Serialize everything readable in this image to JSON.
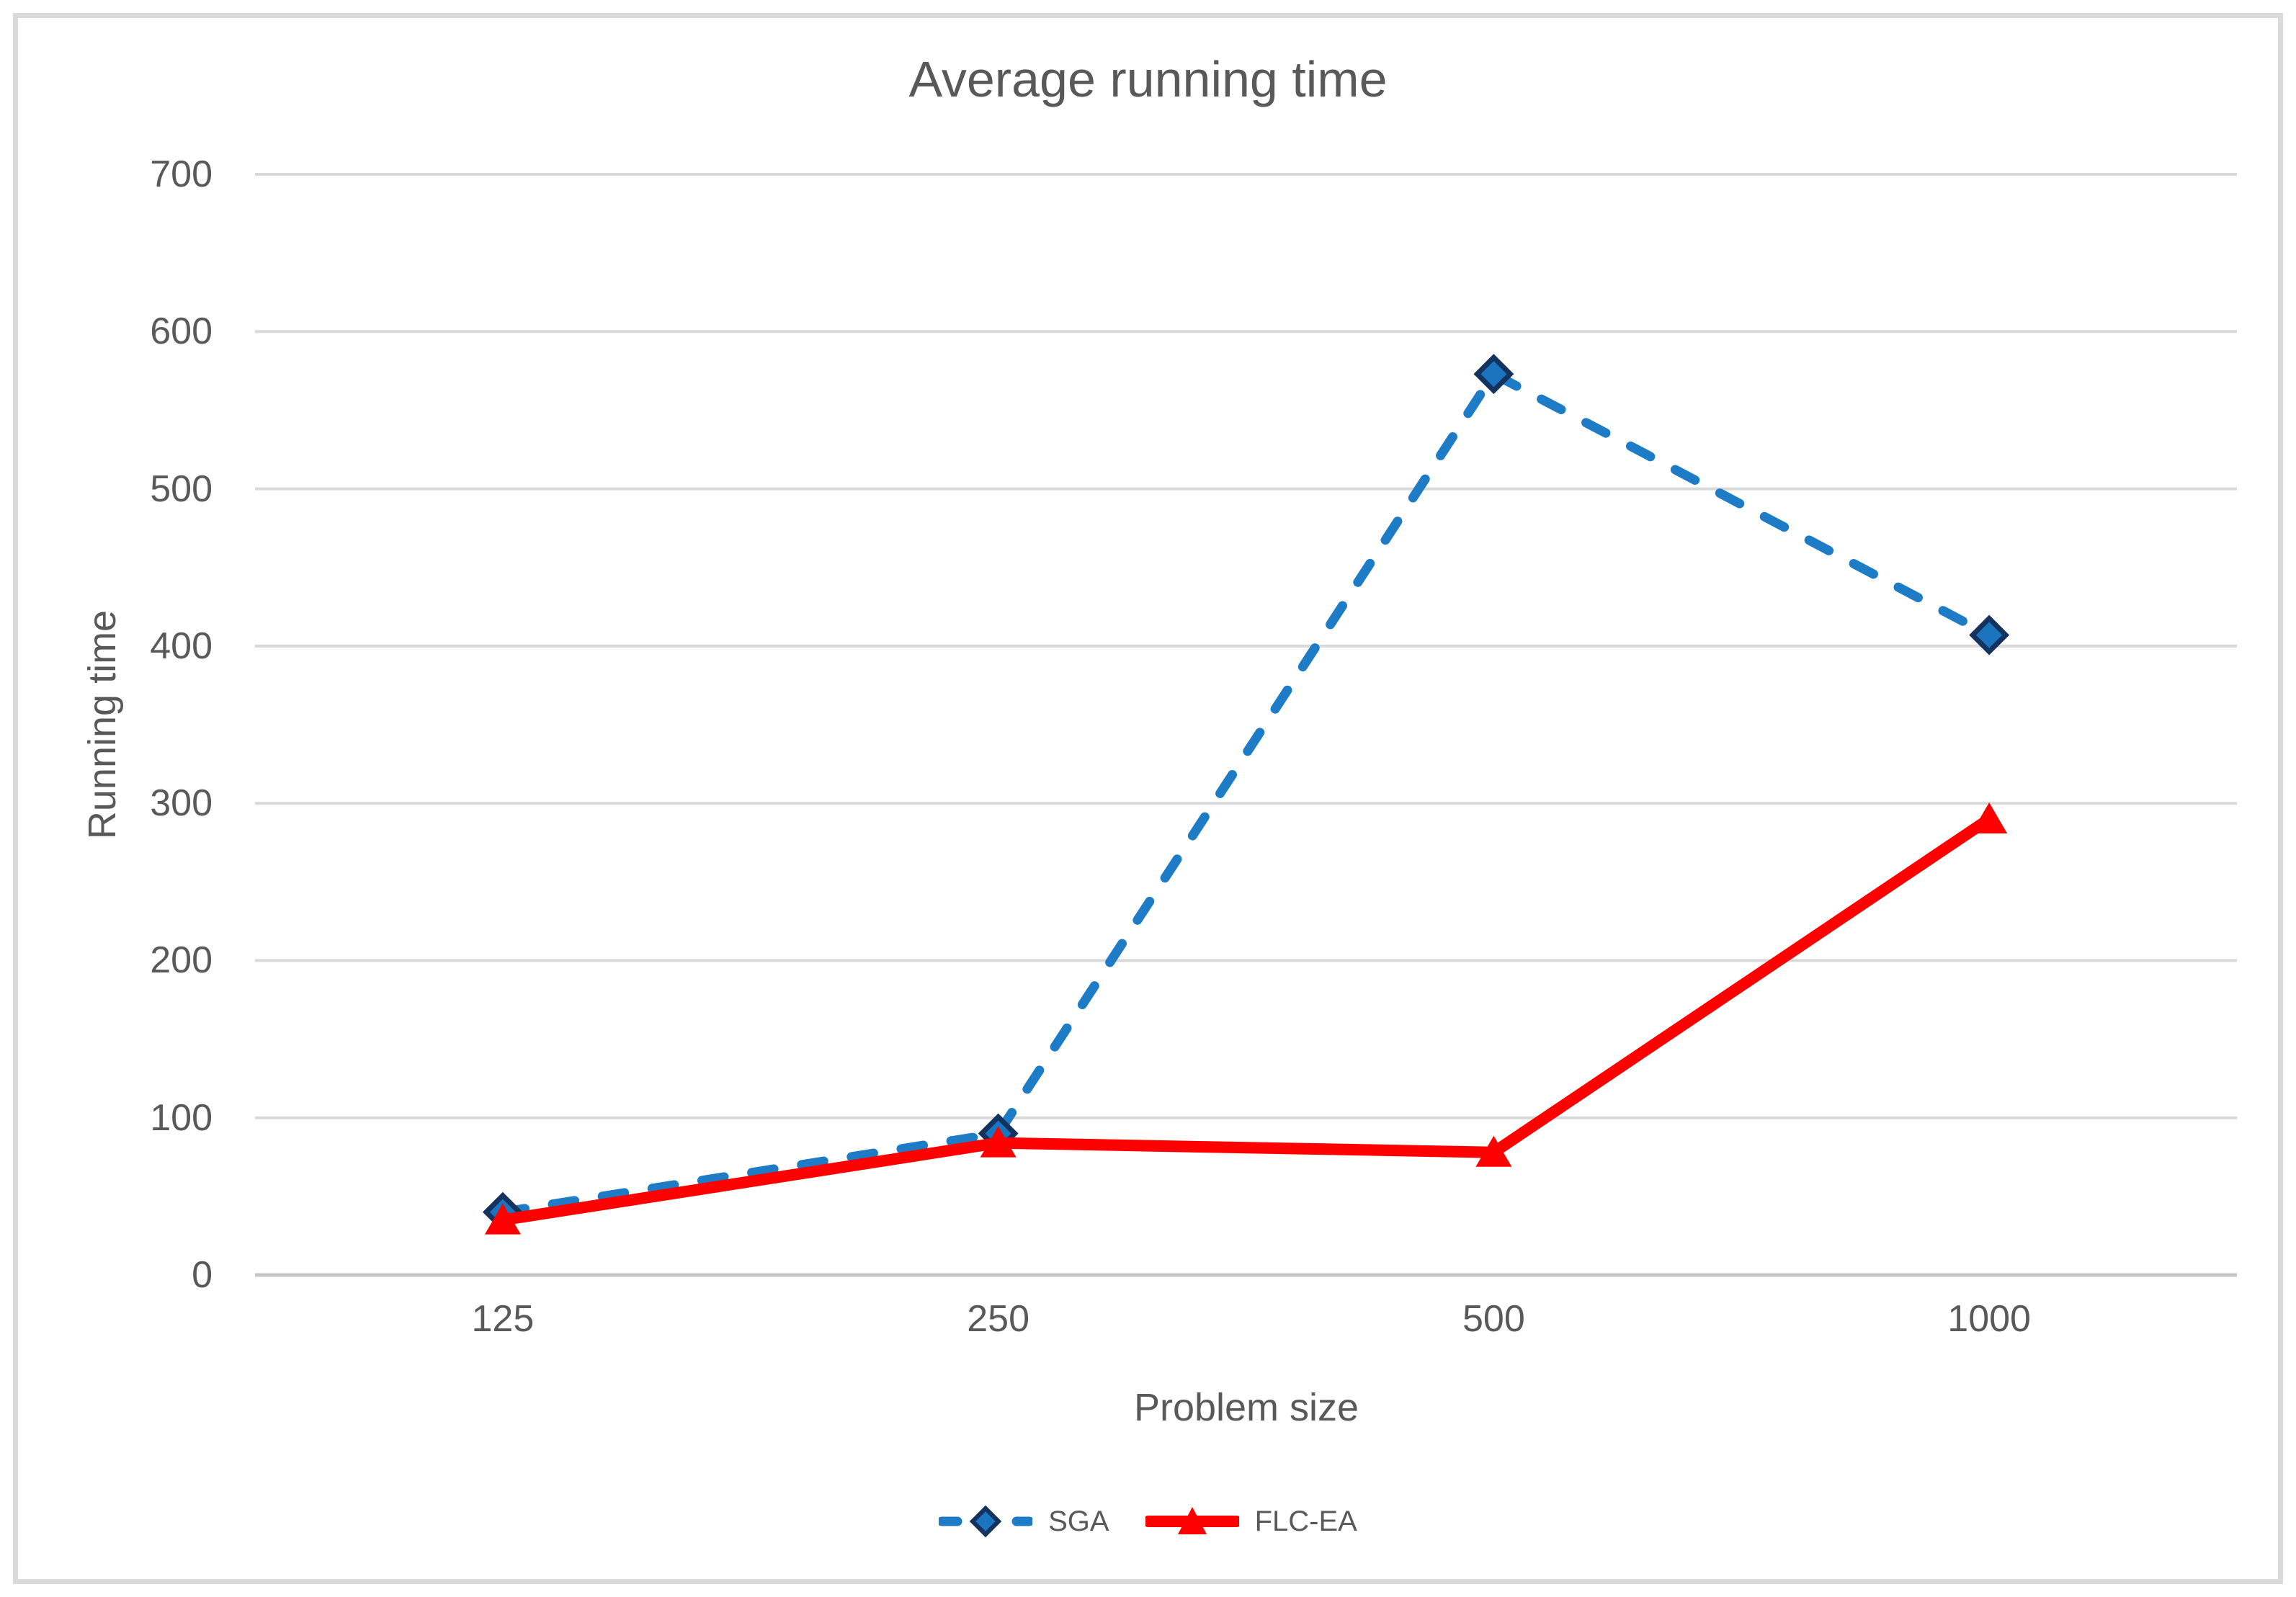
{
  "chart_data": {
    "type": "line",
    "title": "Average running time",
    "xlabel": "Problem size",
    "ylabel": "Running time",
    "categories": [
      "125",
      "250",
      "500",
      "1000"
    ],
    "series": [
      {
        "name": "SGA",
        "values": [
          40,
          90,
          573,
          407
        ],
        "color": "#1E7CC7",
        "line_style": "dashed",
        "marker": "diamond",
        "marker_fill": "#1B74BE",
        "marker_stroke": "#13325E"
      },
      {
        "name": "FLC-EA",
        "values": [
          35,
          84,
          78,
          290
        ],
        "color": "#FE0000",
        "line_style": "solid",
        "marker": "triangle",
        "marker_fill": "#FE0000",
        "marker_stroke": "#E40000"
      }
    ],
    "ylim": [
      0,
      700
    ],
    "yticks": [
      0,
      100,
      200,
      300,
      400,
      500,
      600,
      700
    ],
    "grid": "horizontal",
    "legend_position": "bottom"
  },
  "colors": {
    "text": "#595959",
    "gridline": "#D9D9D9",
    "axis_line": "#C6C6C6",
    "chart_border": "#DBDBDB",
    "background": "#FFFFFF"
  }
}
